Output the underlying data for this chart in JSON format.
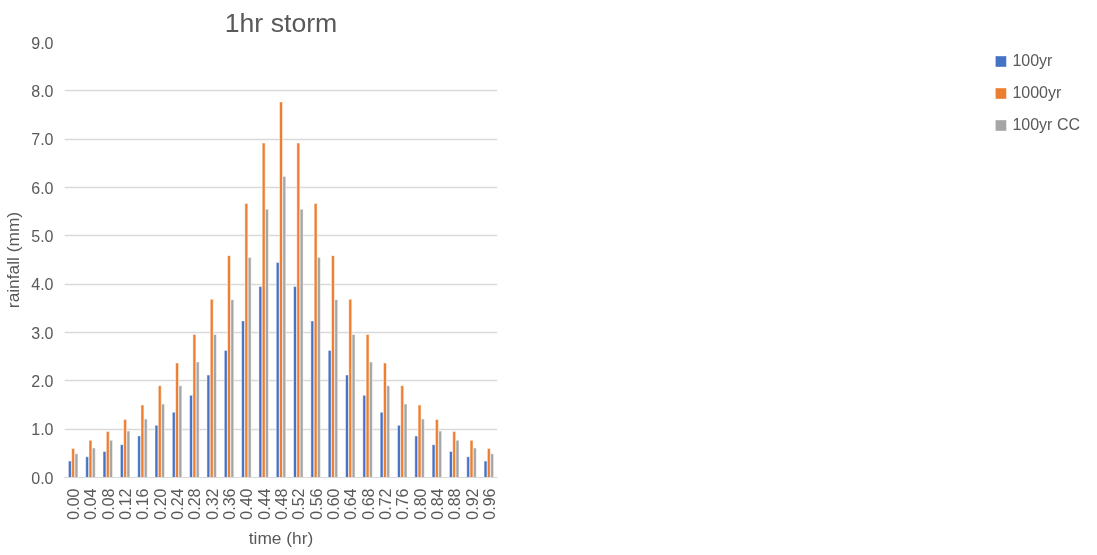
{
  "chart_data": {
    "type": "bar",
    "title": "1hr storm",
    "xlabel": "time (hr)",
    "ylabel": "rainfall (mm)",
    "categories": [
      "0.00",
      "0.04",
      "0.08",
      "0.12",
      "0.16",
      "0.20",
      "0.24",
      "0.28",
      "0.32",
      "0.36",
      "0.40",
      "0.44",
      "0.48",
      "0.52",
      "0.56",
      "0.60",
      "0.64",
      "0.68",
      "0.72",
      "0.76",
      "0.80",
      "0.84",
      "0.88",
      "0.92",
      "0.96"
    ],
    "series": [
      {
        "name": "100yr",
        "color": "#4472c4",
        "values": [
          0.34,
          0.43,
          0.54,
          0.68,
          0.86,
          1.08,
          1.35,
          1.7,
          2.12,
          2.63,
          3.24,
          3.95,
          4.45,
          3.95,
          3.24,
          2.63,
          2.12,
          1.7,
          1.35,
          1.08,
          0.86,
          0.68,
          0.54,
          0.43,
          0.34
        ]
      },
      {
        "name": "1000yr",
        "color": "#ed7d31",
        "values": [
          0.6,
          0.77,
          0.95,
          1.2,
          1.5,
          1.9,
          2.37,
          2.96,
          3.69,
          4.59,
          5.67,
          6.92,
          7.77,
          6.92,
          5.67,
          4.59,
          3.69,
          2.96,
          2.37,
          1.9,
          1.5,
          1.2,
          0.95,
          0.77,
          0.6
        ]
      },
      {
        "name": "100yr CC",
        "color": "#a5a5a5",
        "values": [
          0.49,
          0.61,
          0.77,
          0.96,
          1.21,
          1.52,
          1.9,
          2.39,
          2.96,
          3.68,
          4.55,
          5.55,
          6.23,
          5.55,
          4.55,
          3.68,
          2.96,
          2.39,
          1.9,
          1.52,
          1.21,
          0.96,
          0.77,
          0.61,
          0.49
        ]
      }
    ],
    "ylim": [
      0,
      9
    ],
    "yticks": [
      {
        "value": 0,
        "label": "0.0"
      },
      {
        "value": 1,
        "label": "1.0"
      },
      {
        "value": 2,
        "label": "2.0"
      },
      {
        "value": 3,
        "label": "3.0"
      },
      {
        "value": 4,
        "label": "4.0"
      },
      {
        "value": 5,
        "label": "5.0"
      },
      {
        "value": 6,
        "label": "6.0"
      },
      {
        "value": 7,
        "label": "7.0"
      },
      {
        "value": 8,
        "label": "8.0"
      },
      {
        "value": 9,
        "label": "9.0"
      }
    ],
    "grid": "y",
    "legend": "right"
  }
}
